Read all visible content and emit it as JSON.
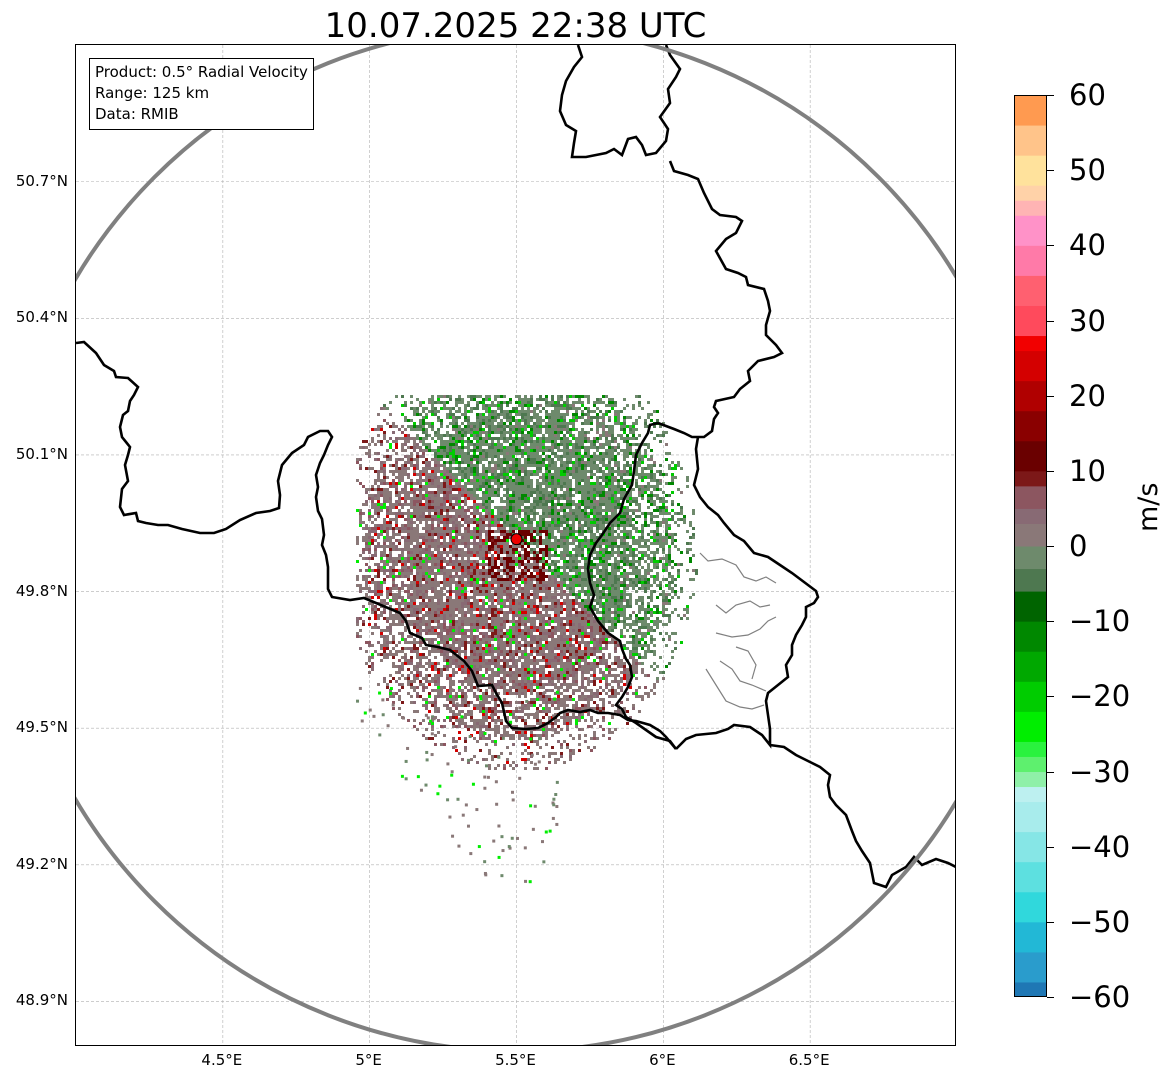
{
  "title": "10.07.2025 22:38 UTC",
  "info_box": {
    "product": "Product: 0.5° Radial Velocity",
    "range": "Range: 125 km",
    "data": "Data: RMIB"
  },
  "map": {
    "lon_range": [
      4.0,
      7.0
    ],
    "lat_range": [
      48.8,
      51.0
    ],
    "radar_site": {
      "lon": 5.5,
      "lat": 49.915
    },
    "range_ring_color": "#808080",
    "border_color": "#000000",
    "gridlines": true,
    "lat_ticks": [
      {
        "value": 50.7,
        "label": "50.7°N"
      },
      {
        "value": 50.4,
        "label": "50.4°N"
      },
      {
        "value": 50.1,
        "label": "50.1°N"
      },
      {
        "value": 49.8,
        "label": "49.8°N"
      },
      {
        "value": 49.5,
        "label": "49.5°N"
      },
      {
        "value": 49.2,
        "label": "49.2°N"
      },
      {
        "value": 48.9,
        "label": "48.9°N"
      }
    ],
    "lon_ticks": [
      {
        "value": 4.5,
        "label": "4.5°E"
      },
      {
        "value": 5.0,
        "label": "5°E"
      },
      {
        "value": 5.5,
        "label": "5.5°E"
      },
      {
        "value": 6.0,
        "label": "6°E"
      },
      {
        "value": 6.5,
        "label": "6.5°E"
      }
    ]
  },
  "colorbar": {
    "unit": "m/s",
    "min": -60,
    "max": 60,
    "tick_labels": [
      "60",
      "50",
      "40",
      "30",
      "20",
      "10",
      "0",
      "−10",
      "−20",
      "−30",
      "−40",
      "−50",
      "−60"
    ],
    "tick_values": [
      60,
      50,
      40,
      30,
      20,
      10,
      0,
      -10,
      -20,
      -30,
      -40,
      -50,
      -60
    ],
    "stops": [
      {
        "from": -60,
        "to": -58,
        "color": "#1f77b4"
      },
      {
        "from": -58,
        "to": -54,
        "color": "#2a9ccc"
      },
      {
        "from": -54,
        "to": -50,
        "color": "#22b8d6"
      },
      {
        "from": -50,
        "to": -46,
        "color": "#30d8dc"
      },
      {
        "from": -46,
        "to": -42,
        "color": "#5de0e0"
      },
      {
        "from": -42,
        "to": -38,
        "color": "#86e6e6"
      },
      {
        "from": -38,
        "to": -34,
        "color": "#a8ecec"
      },
      {
        "from": -34,
        "to": -32,
        "color": "#bdf0f0"
      },
      {
        "from": -32,
        "to": -30,
        "color": "#8ff0a8"
      },
      {
        "from": -30,
        "to": -28,
        "color": "#5ef06e"
      },
      {
        "from": -28,
        "to": -26,
        "color": "#2af23e"
      },
      {
        "from": -26,
        "to": -22,
        "color": "#00ee00"
      },
      {
        "from": -22,
        "to": -18,
        "color": "#00cc00"
      },
      {
        "from": -18,
        "to": -14,
        "color": "#00a800"
      },
      {
        "from": -14,
        "to": -10,
        "color": "#008800"
      },
      {
        "from": -10,
        "to": -6,
        "color": "#006400"
      },
      {
        "from": -6,
        "to": -3,
        "color": "#4e7850"
      },
      {
        "from": -3,
        "to": 0,
        "color": "#6e8a6c"
      },
      {
        "from": 0,
        "to": 3,
        "color": "#8a7878"
      },
      {
        "from": 3,
        "to": 5,
        "color": "#886a74"
      },
      {
        "from": 5,
        "to": 8,
        "color": "#8c5660"
      },
      {
        "from": 8,
        "to": 10,
        "color": "#7c1818"
      },
      {
        "from": 10,
        "to": 14,
        "color": "#6a0000"
      },
      {
        "from": 14,
        "to": 18,
        "color": "#8a0000"
      },
      {
        "from": 18,
        "to": 22,
        "color": "#b00000"
      },
      {
        "from": 22,
        "to": 26,
        "color": "#d40000"
      },
      {
        "from": 26,
        "to": 28,
        "color": "#f20000"
      },
      {
        "from": 28,
        "to": 32,
        "color": "#ff4a5c"
      },
      {
        "from": 32,
        "to": 36,
        "color": "#ff6070"
      },
      {
        "from": 36,
        "to": 40,
        "color": "#ff7aa8"
      },
      {
        "from": 40,
        "to": 44,
        "color": "#ff92c8"
      },
      {
        "from": 44,
        "to": 46,
        "color": "#ffb4b4"
      },
      {
        "from": 46,
        "to": 48,
        "color": "#ffd2a8"
      },
      {
        "from": 48,
        "to": 52,
        "color": "#ffe29c"
      },
      {
        "from": 52,
        "to": 56,
        "color": "#ffc48a"
      },
      {
        "from": 56,
        "to": 60,
        "color": "#ff9a50"
      }
    ]
  }
}
